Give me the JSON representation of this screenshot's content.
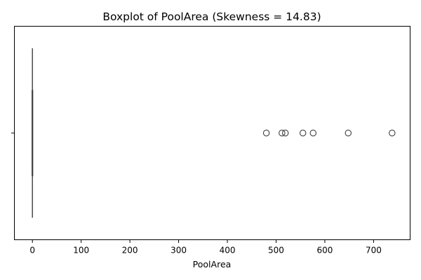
{
  "chart_data": {
    "type": "boxplot",
    "title": "Boxplot of PoolArea (Skewness = 14.83)",
    "xlabel": "PoolArea",
    "ylabel": "",
    "orientation": "horizontal",
    "xlim": [
      -37,
      775
    ],
    "xticks": [
      0,
      100,
      200,
      300,
      400,
      500,
      600,
      700
    ],
    "xtick_labels": [
      "0",
      "100",
      "200",
      "300",
      "400",
      "500",
      "600",
      "700"
    ],
    "box": {
      "min": 0,
      "q1": 0,
      "median": 0,
      "q3": 0,
      "max": 0
    },
    "outliers": [
      480,
      512,
      519,
      555,
      576,
      648,
      738
    ],
    "grid": false,
    "colors": {
      "box_line": "#3f3f3f",
      "outlier_edge": "#3f3f3f",
      "axes": "#000000"
    }
  }
}
